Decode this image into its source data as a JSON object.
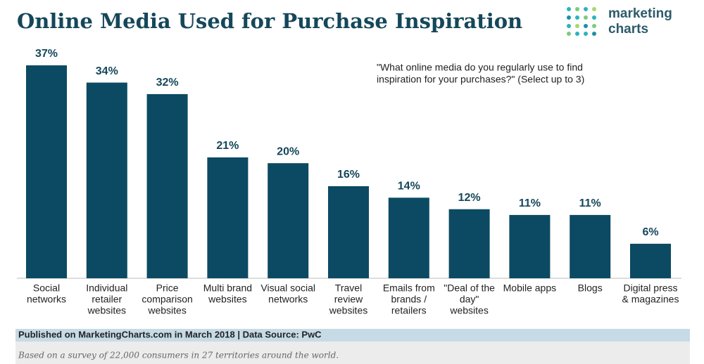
{
  "chart_data": {
    "type": "bar",
    "title": "Online Media Used for Purchase Inspiration",
    "logo": [
      "marketing",
      "charts"
    ],
    "subtitle": [
      "\"What online media do you regularly use to find",
      "inspiration for your purchases?\" (Select up to 3)"
    ],
    "categories": [
      [
        "Social",
        "networks"
      ],
      [
        "Individual",
        "retailer",
        "websites"
      ],
      [
        "Price",
        "comparison",
        "websites"
      ],
      [
        "Multi brand",
        "websites"
      ],
      [
        "Visual social",
        "networks"
      ],
      [
        "Travel",
        "review",
        "websites"
      ],
      [
        "Emails from",
        "brands /",
        "retailers"
      ],
      [
        "\"Deal of the",
        "day\"",
        "websites"
      ],
      [
        "Mobile apps"
      ],
      [
        "Blogs"
      ],
      [
        "Digital press",
        "& magazines"
      ]
    ],
    "values": [
      37,
      34,
      32,
      21,
      20,
      16,
      14,
      12,
      11,
      11,
      6
    ],
    "value_labels": [
      "37%",
      "34%",
      "32%",
      "21%",
      "20%",
      "16%",
      "14%",
      "12%",
      "11%",
      "11%",
      "6%"
    ],
    "color": "#0b4a62",
    "footer": "Published on MarketingCharts.com in March 2018 | Data Source: PwC",
    "note": "Based on a survey of 22,000 consumers in 27 territories around the world."
  }
}
